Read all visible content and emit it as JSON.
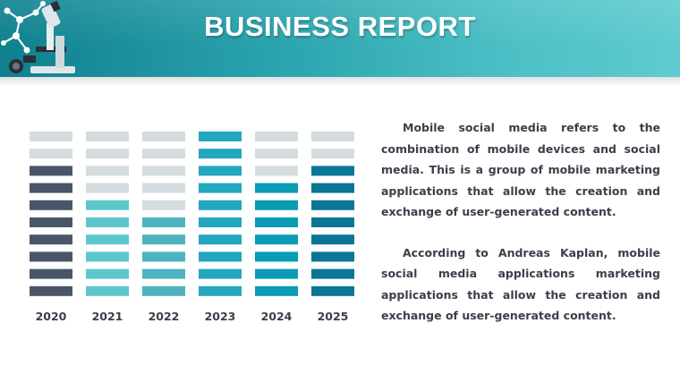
{
  "header": {
    "title": "BUSINESS REPORT"
  },
  "chart_data": {
    "type": "bar",
    "style": "stacked-segment-pictograph",
    "categories": [
      "2020",
      "2021",
      "2022",
      "2023",
      "2024",
      "2025"
    ],
    "values": [
      8,
      6,
      5,
      10,
      7,
      8
    ],
    "ylim": [
      0,
      10
    ],
    "grid": false,
    "legend": "none",
    "colors": {
      "empty": "#d4dcdf",
      "bars": [
        "#4a5568",
        "#5cc8cc",
        "#4eb3c0",
        "#22a7be",
        "#0a9bb5",
        "#0b7696"
      ]
    }
  },
  "body": {
    "paragraph1": "Mobile social media refers to the combination of mobile devices and social media. This is a group of mobile marketing applications that allow the creation and exchange of user-generated content.",
    "paragraph2": "According to Andreas Kaplan, mobile social media applications marketing applications that allow the creation and exchange of user-generated content."
  }
}
